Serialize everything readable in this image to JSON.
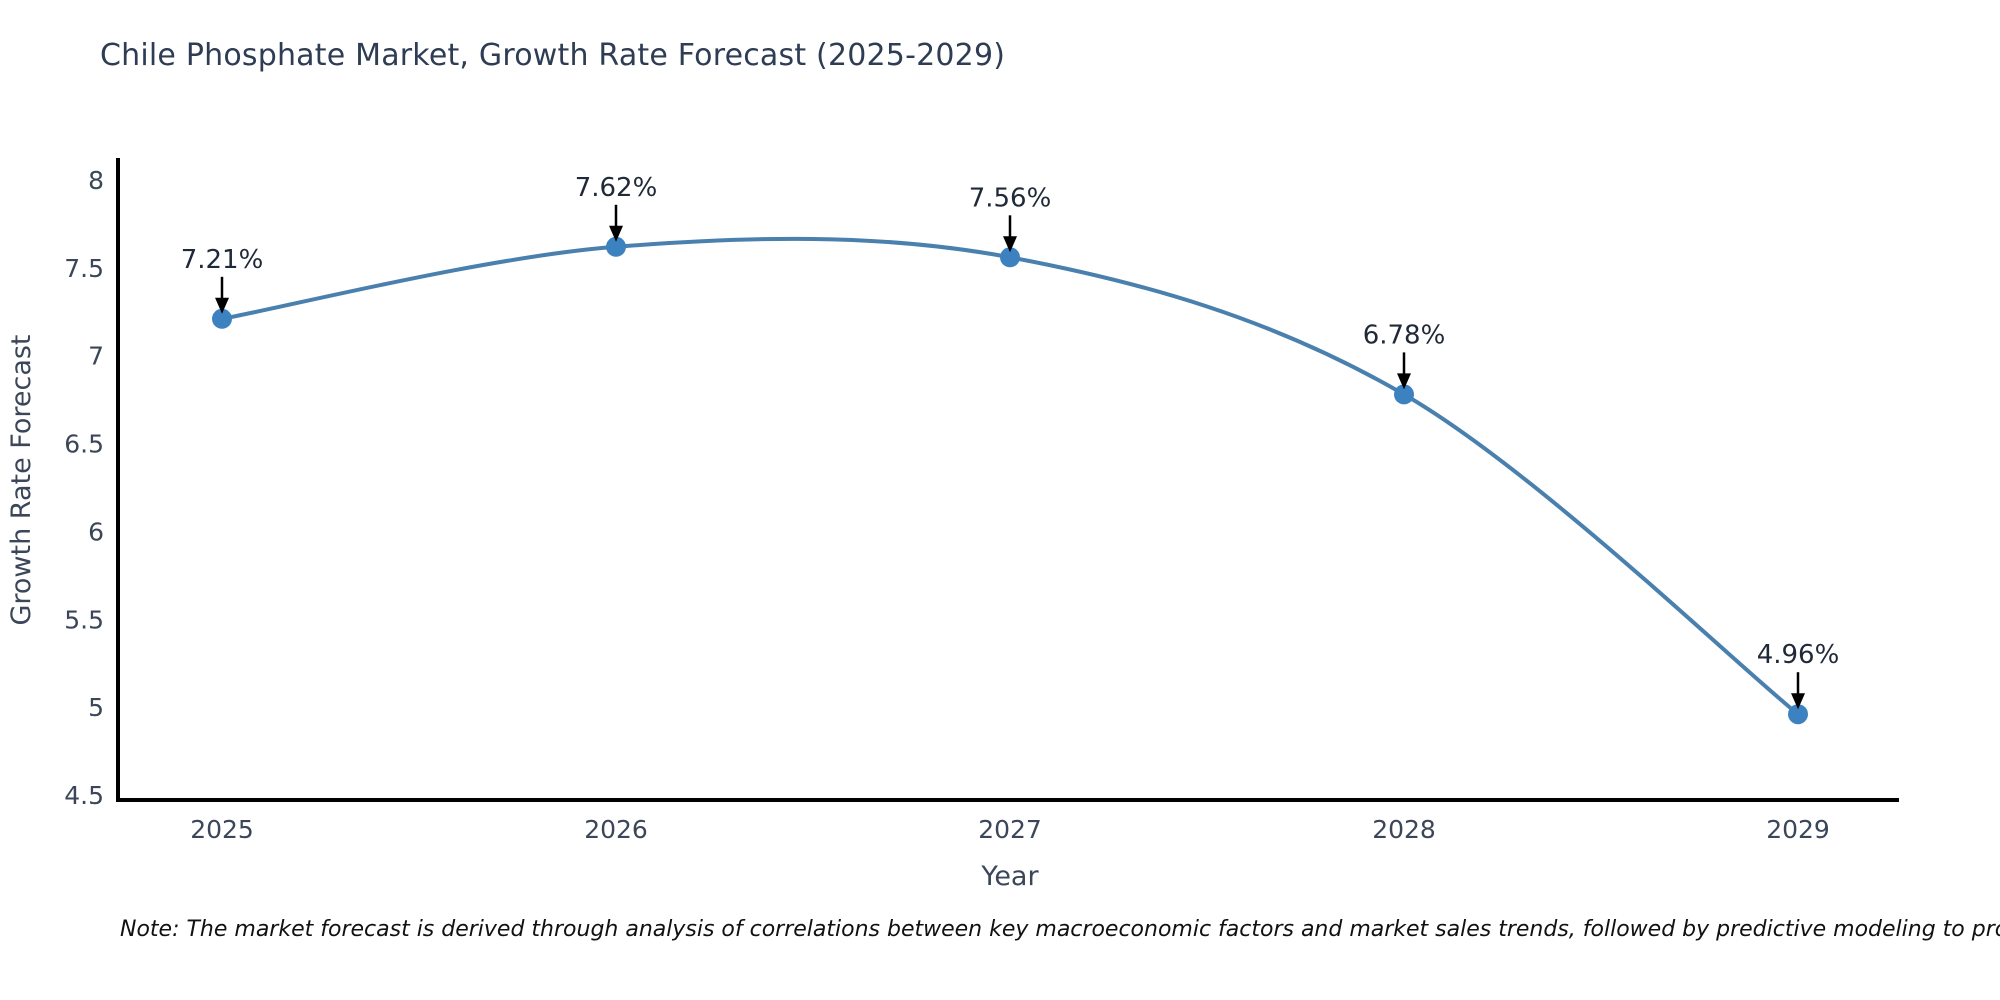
{
  "title": "Chile Phosphate Market, Growth Rate Forecast (2025-2029)",
  "note": "Note: The market forecast is derived through analysis of correlations between key macroeconomic factors and market sales trends, followed by predictive modeling to project future sales",
  "chart_data": {
    "type": "line",
    "title": "Chile Phosphate Market, Growth Rate Forecast (2025-2029)",
    "x": [
      2025,
      2026,
      2027,
      2028,
      2029
    ],
    "values": [
      7.21,
      7.62,
      7.56,
      6.78,
      4.96
    ],
    "point_labels": [
      "7.21%",
      "7.62%",
      "7.56%",
      "6.78%",
      "4.96%"
    ],
    "xlabel": "Year",
    "ylabel": "Growth Rate Forecast",
    "x_ticks": [
      "2025",
      "2026",
      "2027",
      "2028",
      "2029"
    ],
    "y_ticks": [
      "8",
      "7.5",
      "7",
      "6.5",
      "6",
      "5.5",
      "5",
      "4.5"
    ],
    "ylim": [
      4.47,
      8.12
    ],
    "grid": false,
    "legend": false,
    "line_shape": "spline",
    "colors": {
      "line": "#4a80ae",
      "marker": "#3c82c0",
      "annotation_arrow": "#000000",
      "annotation_text": "#1f2937",
      "axis_line": "#000000",
      "tick_text": "#3b4759",
      "title_text": "#2e3d54"
    }
  }
}
